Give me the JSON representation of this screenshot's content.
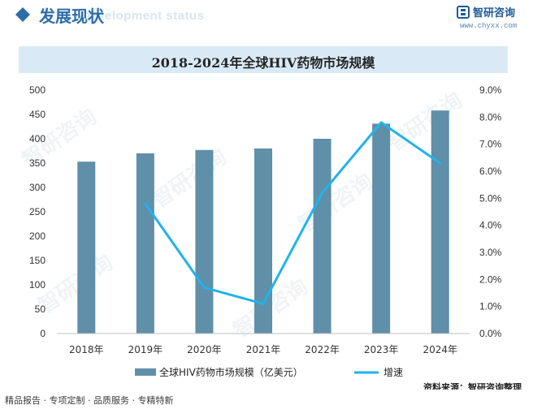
{
  "header": {
    "title": "发展现状",
    "subtitle": "Development status",
    "brand_name": "智研咨询",
    "brand_url": "www.chyxx.com"
  },
  "watermark": "智研咨询",
  "footer": {
    "services": "精品报告 · 专项定制 · 品质服务 · 专精特新",
    "source": "资料来源：智研咨询整理"
  },
  "colors": {
    "bar": "#5f8fa9",
    "line": "#21b3ea",
    "title_band": "#d9eaf6",
    "header_blue": "#2d6da8"
  },
  "chart_data": {
    "type": "bar",
    "title": "2018-2024年全球HIV药物市场规模",
    "categories": [
      "2018年",
      "2019年",
      "2020年",
      "2021年",
      "2022年",
      "2023年",
      "2024年"
    ],
    "series": [
      {
        "name": "全球HIV药物市场规模（亿美元）",
        "type": "bar",
        "axis": "left",
        "values": [
          353,
          370,
          377,
          380,
          400,
          431,
          458
        ]
      },
      {
        "name": "增速",
        "type": "line",
        "axis": "right",
        "values": [
          null,
          4.8,
          1.7,
          1.1,
          5.2,
          7.8,
          6.3
        ]
      }
    ],
    "y_left": {
      "min": 0,
      "max": 500,
      "step": 50,
      "ticks": [
        "0",
        "50",
        "100",
        "150",
        "200",
        "250",
        "300",
        "350",
        "400",
        "450",
        "500"
      ]
    },
    "y_right": {
      "min": 0,
      "max": 9,
      "step": 1,
      "ticks": [
        "0.0%",
        "1.0%",
        "2.0%",
        "3.0%",
        "4.0%",
        "5.0%",
        "6.0%",
        "7.0%",
        "8.0%",
        "9.0%"
      ]
    },
    "legend_position": "bottom",
    "grid": false
  }
}
